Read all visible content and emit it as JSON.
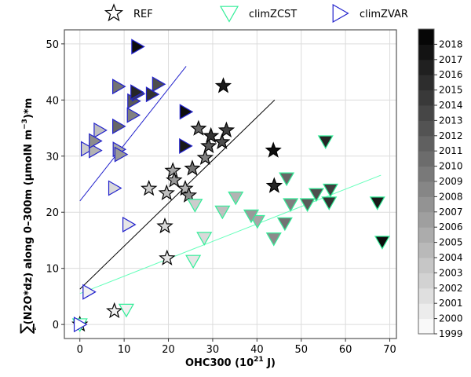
{
  "chart_data": {
    "type": "scatter",
    "title": "",
    "xlabel": "OHC300 (10^21 J)",
    "xlabel_main": "OHC300 (10",
    "xlabel_sup": "21",
    "xlabel_tail": " J)",
    "ylabel": "∑z(N2O*dz) along 0–300m (µmolN m^-3)*m",
    "ylabel_sum": "∑",
    "ylabel_sub": "z",
    "ylabel_main": "(N2O*dz) along 0–300m (µmolN m",
    "ylabel_sup": "−3",
    "ylabel_tail": ")*m",
    "xlim": [
      -3.5,
      71.5
    ],
    "ylim": [
      -2.5,
      52.5
    ],
    "xticks": [
      0,
      10,
      20,
      30,
      40,
      50,
      60,
      70
    ],
    "yticks": [
      0,
      10,
      20,
      30,
      40,
      50
    ],
    "grid": true,
    "legend": {
      "placement": "top-outside",
      "entries": [
        {
          "name": "REF",
          "marker": "star",
          "edge_color": "#000000"
        },
        {
          "name": "climZCST",
          "marker": "triangle-down",
          "edge_color": "#33ee99"
        },
        {
          "name": "climZVAR",
          "marker": "triangle-right",
          "edge_color": "#2222cc"
        }
      ]
    },
    "colorbar": {
      "label_ticks": [
        "1999",
        "2000",
        "2001",
        "2002",
        "2003",
        "2004",
        "2005",
        "2006",
        "2007",
        "2008",
        "2009",
        "2010",
        "2011",
        "2012",
        "2013",
        "2014",
        "2015",
        "2016",
        "2017",
        "2018"
      ],
      "year_min": 1999,
      "year_max": 2019,
      "colormap": "Greys"
    },
    "series": [
      {
        "name": "REF",
        "marker": "star",
        "edge_color": "#000000",
        "fit_line": {
          "x": [
            0,
            44
          ],
          "y": [
            6.3,
            40
          ],
          "color": "#000000"
        },
        "points": [
          {
            "x": 0.0,
            "y": 0.0,
            "year": 1999
          },
          {
            "x": 7.8,
            "y": 2.4,
            "year": 2000
          },
          {
            "x": 19.7,
            "y": 11.8,
            "year": 2001
          },
          {
            "x": 19.2,
            "y": 17.5,
            "year": 2002
          },
          {
            "x": 15.6,
            "y": 24.2,
            "year": 2003
          },
          {
            "x": 19.6,
            "y": 23.4,
            "year": 2004
          },
          {
            "x": 23.8,
            "y": 24.2,
            "year": 2005
          },
          {
            "x": 21.0,
            "y": 27.4,
            "year": 2006
          },
          {
            "x": 21.3,
            "y": 25.7,
            "year": 2007
          },
          {
            "x": 24.6,
            "y": 23.0,
            "year": 2008
          },
          {
            "x": 28.3,
            "y": 29.7,
            "year": 2009
          },
          {
            "x": 25.4,
            "y": 27.8,
            "year": 2010
          },
          {
            "x": 26.8,
            "y": 34.9,
            "year": 2011
          },
          {
            "x": 29.1,
            "y": 31.8,
            "year": 2012
          },
          {
            "x": 32.1,
            "y": 32.5,
            "year": 2013
          },
          {
            "x": 33.1,
            "y": 34.6,
            "year": 2014
          },
          {
            "x": 29.6,
            "y": 33.6,
            "year": 2015
          },
          {
            "x": 43.9,
            "y": 24.7,
            "year": 2016
          },
          {
            "x": 32.4,
            "y": 42.5,
            "year": 2017
          },
          {
            "x": 43.7,
            "y": 31.0,
            "year": 2018
          }
        ]
      },
      {
        "name": "climZCST",
        "marker": "triangle-down",
        "edge_color": "#33ee99",
        "fit_line": {
          "x": [
            0,
            68
          ],
          "y": [
            5.5,
            26.6
          ],
          "color": "#66ffbb"
        },
        "points": [
          {
            "x": 0.0,
            "y": 0.0,
            "year": 1999
          },
          {
            "x": 10.5,
            "y": 2.6,
            "year": 2000
          },
          {
            "x": 25.6,
            "y": 11.3,
            "year": 2001
          },
          {
            "x": 28.1,
            "y": 15.4,
            "year": 2002
          },
          {
            "x": 26.0,
            "y": 21.3,
            "year": 2003
          },
          {
            "x": 32.2,
            "y": 20.1,
            "year": 2004
          },
          {
            "x": 35.2,
            "y": 22.6,
            "year": 2005
          },
          {
            "x": 40.1,
            "y": 18.4,
            "year": 2006
          },
          {
            "x": 38.7,
            "y": 19.4,
            "year": 2007
          },
          {
            "x": 43.8,
            "y": 15.3,
            "year": 2008
          },
          {
            "x": 47.6,
            "y": 21.4,
            "year": 2009
          },
          {
            "x": 46.3,
            "y": 18.0,
            "year": 2010
          },
          {
            "x": 46.7,
            "y": 26.0,
            "year": 2011
          },
          {
            "x": 51.4,
            "y": 21.4,
            "year": 2012
          },
          {
            "x": 53.4,
            "y": 23.2,
            "year": 2013
          },
          {
            "x": 56.6,
            "y": 24.0,
            "year": 2014
          },
          {
            "x": 56.3,
            "y": 21.7,
            "year": 2015
          },
          {
            "x": 55.5,
            "y": 32.6,
            "year": 2016
          },
          {
            "x": 67.2,
            "y": 21.7,
            "year": 2017
          },
          {
            "x": 68.3,
            "y": 14.7,
            "year": 2018
          }
        ]
      },
      {
        "name": "climZVAR",
        "marker": "triangle-right",
        "edge_color": "#2222cc",
        "fit_line": {
          "x": [
            0,
            24
          ],
          "y": [
            22,
            46
          ],
          "color": "#2222cc"
        },
        "points": [
          {
            "x": 0.0,
            "y": 0.0,
            "year": 1999
          },
          {
            "x": 2.0,
            "y": 5.8,
            "year": 2000
          },
          {
            "x": 11.0,
            "y": 17.8,
            "year": 2001
          },
          {
            "x": 7.8,
            "y": 24.3,
            "year": 2002
          },
          {
            "x": 1.6,
            "y": 31.3,
            "year": 2003
          },
          {
            "x": 4.5,
            "y": 34.6,
            "year": 2004
          },
          {
            "x": 3.4,
            "y": 31.0,
            "year": 2005
          },
          {
            "x": 8.8,
            "y": 31.2,
            "year": 2006
          },
          {
            "x": 9.2,
            "y": 30.3,
            "year": 2007
          },
          {
            "x": 3.4,
            "y": 32.7,
            "year": 2008
          },
          {
            "x": 12.0,
            "y": 37.3,
            "year": 2009
          },
          {
            "x": 8.7,
            "y": 42.4,
            "year": 2010
          },
          {
            "x": 8.7,
            "y": 35.3,
            "year": 2011
          },
          {
            "x": 12.1,
            "y": 39.8,
            "year": 2012
          },
          {
            "x": 17.7,
            "y": 42.8,
            "year": 2013
          },
          {
            "x": 13.1,
            "y": 41.1,
            "year": 2014
          },
          {
            "x": 16.3,
            "y": 41.0,
            "year": 2015
          },
          {
            "x": 12.8,
            "y": 41.4,
            "year": 2016
          },
          {
            "x": 23.8,
            "y": 31.8,
            "year": 2017
          },
          {
            "x": 23.9,
            "y": 37.9,
            "year": 2018
          },
          {
            "x": 13.0,
            "y": 49.5,
            "year": 2018
          }
        ]
      }
    ]
  }
}
